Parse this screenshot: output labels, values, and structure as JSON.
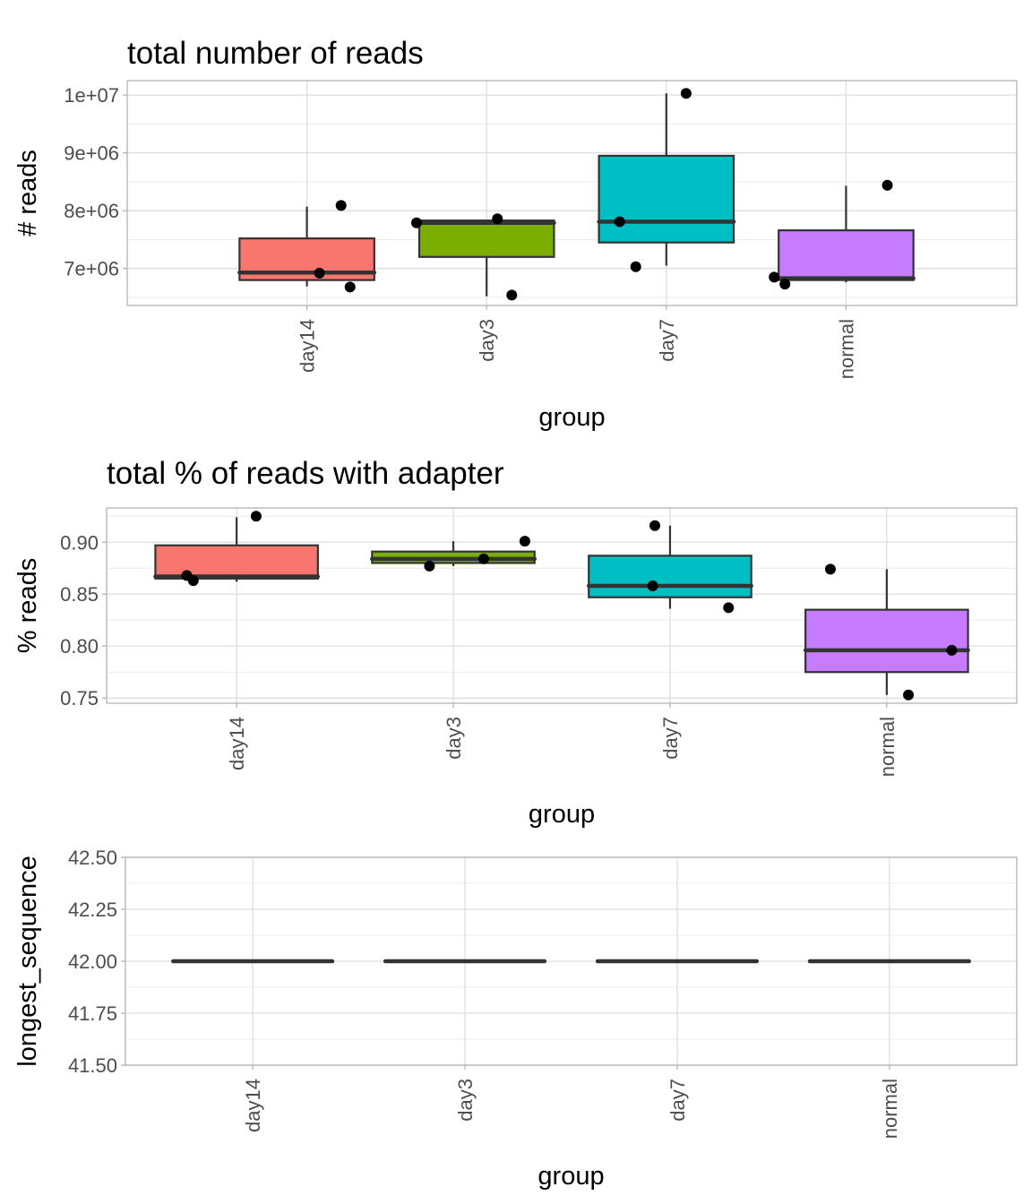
{
  "colors": {
    "day14": "#F8766D",
    "day3": "#7CAE00",
    "day7": "#00BFC4",
    "normal": "#C77CFF",
    "box_line": "#333333",
    "point": "#000000",
    "grid_major": "#dedede",
    "grid_minor": "#ececec",
    "panel_border": "#b3b3b3"
  },
  "chart_data": [
    {
      "type": "box",
      "title": "total number of reads",
      "xlabel": "group",
      "ylabel": "# reads",
      "categories": [
        "day14",
        "day3",
        "day7",
        "normal"
      ],
      "y_ticks": [
        7000000,
        8000000,
        9000000,
        10000000
      ],
      "y_tick_labels": [
        "7e+06",
        "8e+06",
        "9e+06",
        "1e+07"
      ],
      "ylim": [
        6360000,
        10250000
      ],
      "grid": true,
      "boxes": [
        {
          "group": "day14",
          "lower_whisker": 6690000,
          "q1": 6800000,
          "median": 6930000,
          "q3": 7520000,
          "upper_whisker": 8070000
        },
        {
          "group": "day3",
          "lower_whisker": 6520000,
          "q1": 7200000,
          "median": 7790000,
          "q3": 7830000,
          "upper_whisker": 7830000
        },
        {
          "group": "day7",
          "lower_whisker": 7050000,
          "q1": 7450000,
          "median": 7810000,
          "q3": 8950000,
          "upper_whisker": 10030000
        },
        {
          "group": "normal",
          "lower_whisker": 6760000,
          "q1": 6800000,
          "median": 6830000,
          "q3": 7660000,
          "upper_whisker": 8430000
        }
      ],
      "points": [
        {
          "group": "day14",
          "jitter": 0.07,
          "y": 6920000
        },
        {
          "group": "day14",
          "jitter": 0.19,
          "y": 8090000
        },
        {
          "group": "day14",
          "jitter": 0.24,
          "y": 6680000
        },
        {
          "group": "day3",
          "jitter": -0.39,
          "y": 7790000
        },
        {
          "group": "day3",
          "jitter": 0.06,
          "y": 7860000
        },
        {
          "group": "day3",
          "jitter": 0.14,
          "y": 6540000
        },
        {
          "group": "day7",
          "jitter": -0.26,
          "y": 7810000
        },
        {
          "group": "day7",
          "jitter": -0.17,
          "y": 7030000
        },
        {
          "group": "day7",
          "jitter": 0.11,
          "y": 10030000
        },
        {
          "group": "normal",
          "jitter": -0.4,
          "y": 6850000
        },
        {
          "group": "normal",
          "jitter": -0.34,
          "y": 6730000
        },
        {
          "group": "normal",
          "jitter": 0.23,
          "y": 8440000
        }
      ]
    },
    {
      "type": "box",
      "title": "total % of reads with adapter",
      "xlabel": "group",
      "ylabel": "% reads",
      "categories": [
        "day14",
        "day3",
        "day7",
        "normal"
      ],
      "y_ticks": [
        0.75,
        0.8,
        0.85,
        0.9
      ],
      "y_tick_labels": [
        "0.75",
        "0.80",
        "0.85",
        "0.90"
      ],
      "ylim": [
        0.745,
        0.933
      ],
      "grid": true,
      "boxes": [
        {
          "group": "day14",
          "lower_whisker": 0.862,
          "q1": 0.865,
          "median": 0.867,
          "q3": 0.897,
          "upper_whisker": 0.924
        },
        {
          "group": "day3",
          "lower_whisker": 0.877,
          "q1": 0.88,
          "median": 0.884,
          "q3": 0.891,
          "upper_whisker": 0.901
        },
        {
          "group": "day7",
          "lower_whisker": 0.836,
          "q1": 0.847,
          "median": 0.858,
          "q3": 0.887,
          "upper_whisker": 0.916
        },
        {
          "group": "normal",
          "lower_whisker": 0.753,
          "q1": 0.775,
          "median": 0.796,
          "q3": 0.835,
          "upper_whisker": 0.874
        }
      ],
      "points": [
        {
          "group": "day14",
          "jitter": -0.23,
          "y": 0.868
        },
        {
          "group": "day14",
          "jitter": -0.2,
          "y": 0.863
        },
        {
          "group": "day14",
          "jitter": 0.09,
          "y": 0.925
        },
        {
          "group": "day3",
          "jitter": -0.11,
          "y": 0.877
        },
        {
          "group": "day3",
          "jitter": 0.14,
          "y": 0.884
        },
        {
          "group": "day3",
          "jitter": 0.33,
          "y": 0.901
        },
        {
          "group": "day7",
          "jitter": -0.08,
          "y": 0.858
        },
        {
          "group": "day7",
          "jitter": -0.07,
          "y": 0.916
        },
        {
          "group": "day7",
          "jitter": 0.27,
          "y": 0.837
        },
        {
          "group": "normal",
          "jitter": -0.26,
          "y": 0.874
        },
        {
          "group": "normal",
          "jitter": 0.1,
          "y": 0.753
        },
        {
          "group": "normal",
          "jitter": 0.3,
          "y": 0.796
        }
      ]
    },
    {
      "type": "box",
      "title": "",
      "xlabel": "group",
      "ylabel": "longest_sequence",
      "categories": [
        "day14",
        "day3",
        "day7",
        "normal"
      ],
      "y_ticks": [
        41.5,
        41.75,
        42.0,
        42.25,
        42.5
      ],
      "y_tick_labels": [
        "41.50",
        "41.75",
        "42.00",
        "42.25",
        "42.50"
      ],
      "ylim": [
        41.5,
        42.5
      ],
      "grid": true,
      "boxes": [
        {
          "group": "day14",
          "lower_whisker": 42,
          "q1": 42,
          "median": 42,
          "q3": 42,
          "upper_whisker": 42
        },
        {
          "group": "day3",
          "lower_whisker": 42,
          "q1": 42,
          "median": 42,
          "q3": 42,
          "upper_whisker": 42
        },
        {
          "group": "day7",
          "lower_whisker": 42,
          "q1": 42,
          "median": 42,
          "q3": 42,
          "upper_whisker": 42
        },
        {
          "group": "normal",
          "lower_whisker": 42,
          "q1": 42,
          "median": 42,
          "q3": 42,
          "upper_whisker": 42
        }
      ],
      "points": []
    }
  ]
}
